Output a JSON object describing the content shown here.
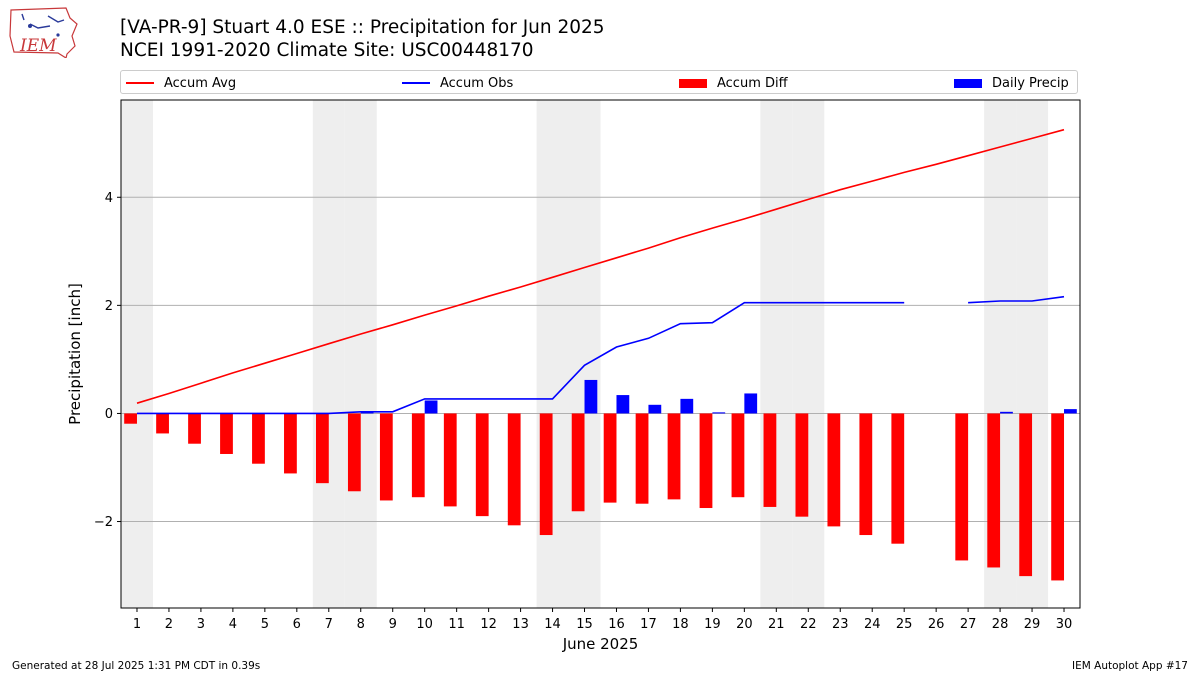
{
  "header": {
    "title": "[VA-PR-9] Stuart 4.0 ESE :: Precipitation for Jun 2025",
    "subtitle": "NCEI 1991-2020 Climate Site: USC00448170",
    "logo_text": "IEM"
  },
  "footer": {
    "generated": "Generated at 28 Jul 2025 1:31 PM CDT in 0.39s",
    "app": "IEM Autoplot App #17"
  },
  "colors": {
    "accum_avg": "#ff0000",
    "accum_obs": "#0000ff",
    "accum_diff": "#ff0000",
    "daily_precip": "#0000ff",
    "weekend_shade": "#eeeeee",
    "grid": "#b0b0b0"
  },
  "chart_data": {
    "type": "bar",
    "xlabel": "June 2025",
    "ylabel": "Precipitation [inch]",
    "xlim": [
      0.5,
      30.5
    ],
    "ylim": [
      -3.6,
      5.8
    ],
    "yticks": [
      -2,
      0,
      2,
      4
    ],
    "ytick_labels": [
      "−2",
      "0",
      "2",
      "4"
    ],
    "grid": "horizontal",
    "legend_position": "top",
    "weekend_days": [
      1,
      7,
      8,
      14,
      15,
      21,
      22,
      28,
      29
    ],
    "days": [
      1,
      2,
      3,
      4,
      5,
      6,
      7,
      8,
      9,
      10,
      11,
      12,
      13,
      14,
      15,
      16,
      17,
      18,
      19,
      20,
      21,
      22,
      23,
      24,
      25,
      26,
      27,
      28,
      29,
      30
    ],
    "series": [
      {
        "name": "Accum Avg",
        "kind": "line",
        "values": [
          0.19,
          0.37,
          0.56,
          0.75,
          0.93,
          1.11,
          1.29,
          1.47,
          1.64,
          1.82,
          1.99,
          2.17,
          2.34,
          2.52,
          2.7,
          2.88,
          3.06,
          3.25,
          3.43,
          3.6,
          3.78,
          3.96,
          4.14,
          4.3,
          4.46,
          4.61,
          4.77,
          4.93,
          5.09,
          5.25
        ]
      },
      {
        "name": "Accum Obs",
        "kind": "line",
        "values": [
          0.0,
          0.0,
          0.0,
          0.0,
          0.0,
          0.0,
          0.0,
          0.03,
          0.03,
          0.27,
          0.27,
          0.27,
          0.27,
          0.27,
          0.89,
          1.23,
          1.39,
          1.66,
          1.68,
          2.05,
          2.05,
          2.05,
          2.05,
          2.05,
          2.05,
          null,
          2.05,
          2.08,
          2.08,
          2.16
        ]
      },
      {
        "name": "Accum Diff",
        "kind": "bar",
        "values": [
          -0.19,
          -0.37,
          -0.56,
          -0.75,
          -0.93,
          -1.11,
          -1.29,
          -1.44,
          -1.61,
          -1.55,
          -1.72,
          -1.9,
          -2.07,
          -2.25,
          -1.81,
          -1.65,
          -1.67,
          -1.59,
          -1.75,
          -1.55,
          -1.73,
          -1.91,
          -2.09,
          -2.25,
          -2.41,
          null,
          -2.72,
          -2.85,
          -3.01,
          -3.09
        ]
      },
      {
        "name": "Daily Precip",
        "kind": "bar",
        "values": [
          0,
          0,
          0,
          0,
          0,
          0,
          0,
          0.02,
          0,
          0.24,
          0,
          0,
          0,
          0,
          0.62,
          0.34,
          0.16,
          0.27,
          0.02,
          0.37,
          0,
          0,
          0,
          0,
          0,
          null,
          0,
          0.03,
          0,
          0.08
        ]
      }
    ]
  }
}
